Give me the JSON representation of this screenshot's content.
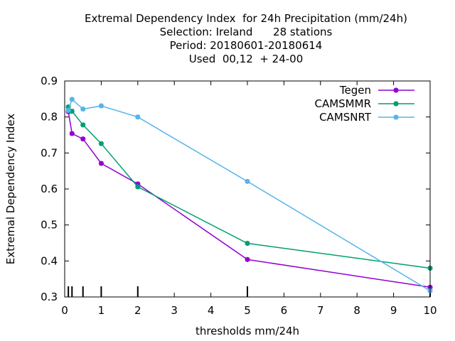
{
  "chart_data": {
    "type": "line",
    "title_lines": [
      "Extremal Dependency Index  for 24h Precipitation (mm/24h)",
      "Selection: Ireland      28 stations",
      "Period: 20180601-20180614",
      "Used  00,12  + 24-00"
    ],
    "xlabel": "thresholds mm/24h",
    "ylabel": "Extremal Dependency Index",
    "xlim": [
      0,
      10
    ],
    "ylim": [
      0.3,
      0.9
    ],
    "xticks": [
      "0",
      "1",
      "2",
      "3",
      "4",
      "5",
      "6",
      "7",
      "8",
      "9",
      "10"
    ],
    "yticks": [
      "0.3",
      "0.4",
      "0.5",
      "0.6",
      "0.7",
      "0.8",
      "0.9"
    ],
    "legend_position": "top-right",
    "threshold_markers": [
      0.1,
      0.2,
      0.5,
      1,
      2,
      5,
      10
    ],
    "series": [
      {
        "name": "Tegen",
        "color": "#9400d3",
        "x": [
          0.1,
          0.2,
          0.5,
          1,
          2,
          5,
          10
        ],
        "y": [
          0.815,
          0.754,
          0.739,
          0.671,
          0.614,
          0.404,
          0.327
        ]
      },
      {
        "name": "CAMSMMR",
        "color": "#009e73",
        "x": [
          0.1,
          0.2,
          0.5,
          1,
          2,
          5,
          10
        ],
        "y": [
          0.828,
          0.816,
          0.778,
          0.726,
          0.606,
          0.449,
          0.38
        ]
      },
      {
        "name": "CAMSNRT",
        "color": "#56b4e9",
        "x": [
          0.1,
          0.2,
          0.5,
          1,
          2,
          5,
          10
        ],
        "y": [
          0.818,
          0.849,
          0.822,
          0.831,
          0.8,
          0.621,
          0.317
        ]
      }
    ]
  }
}
